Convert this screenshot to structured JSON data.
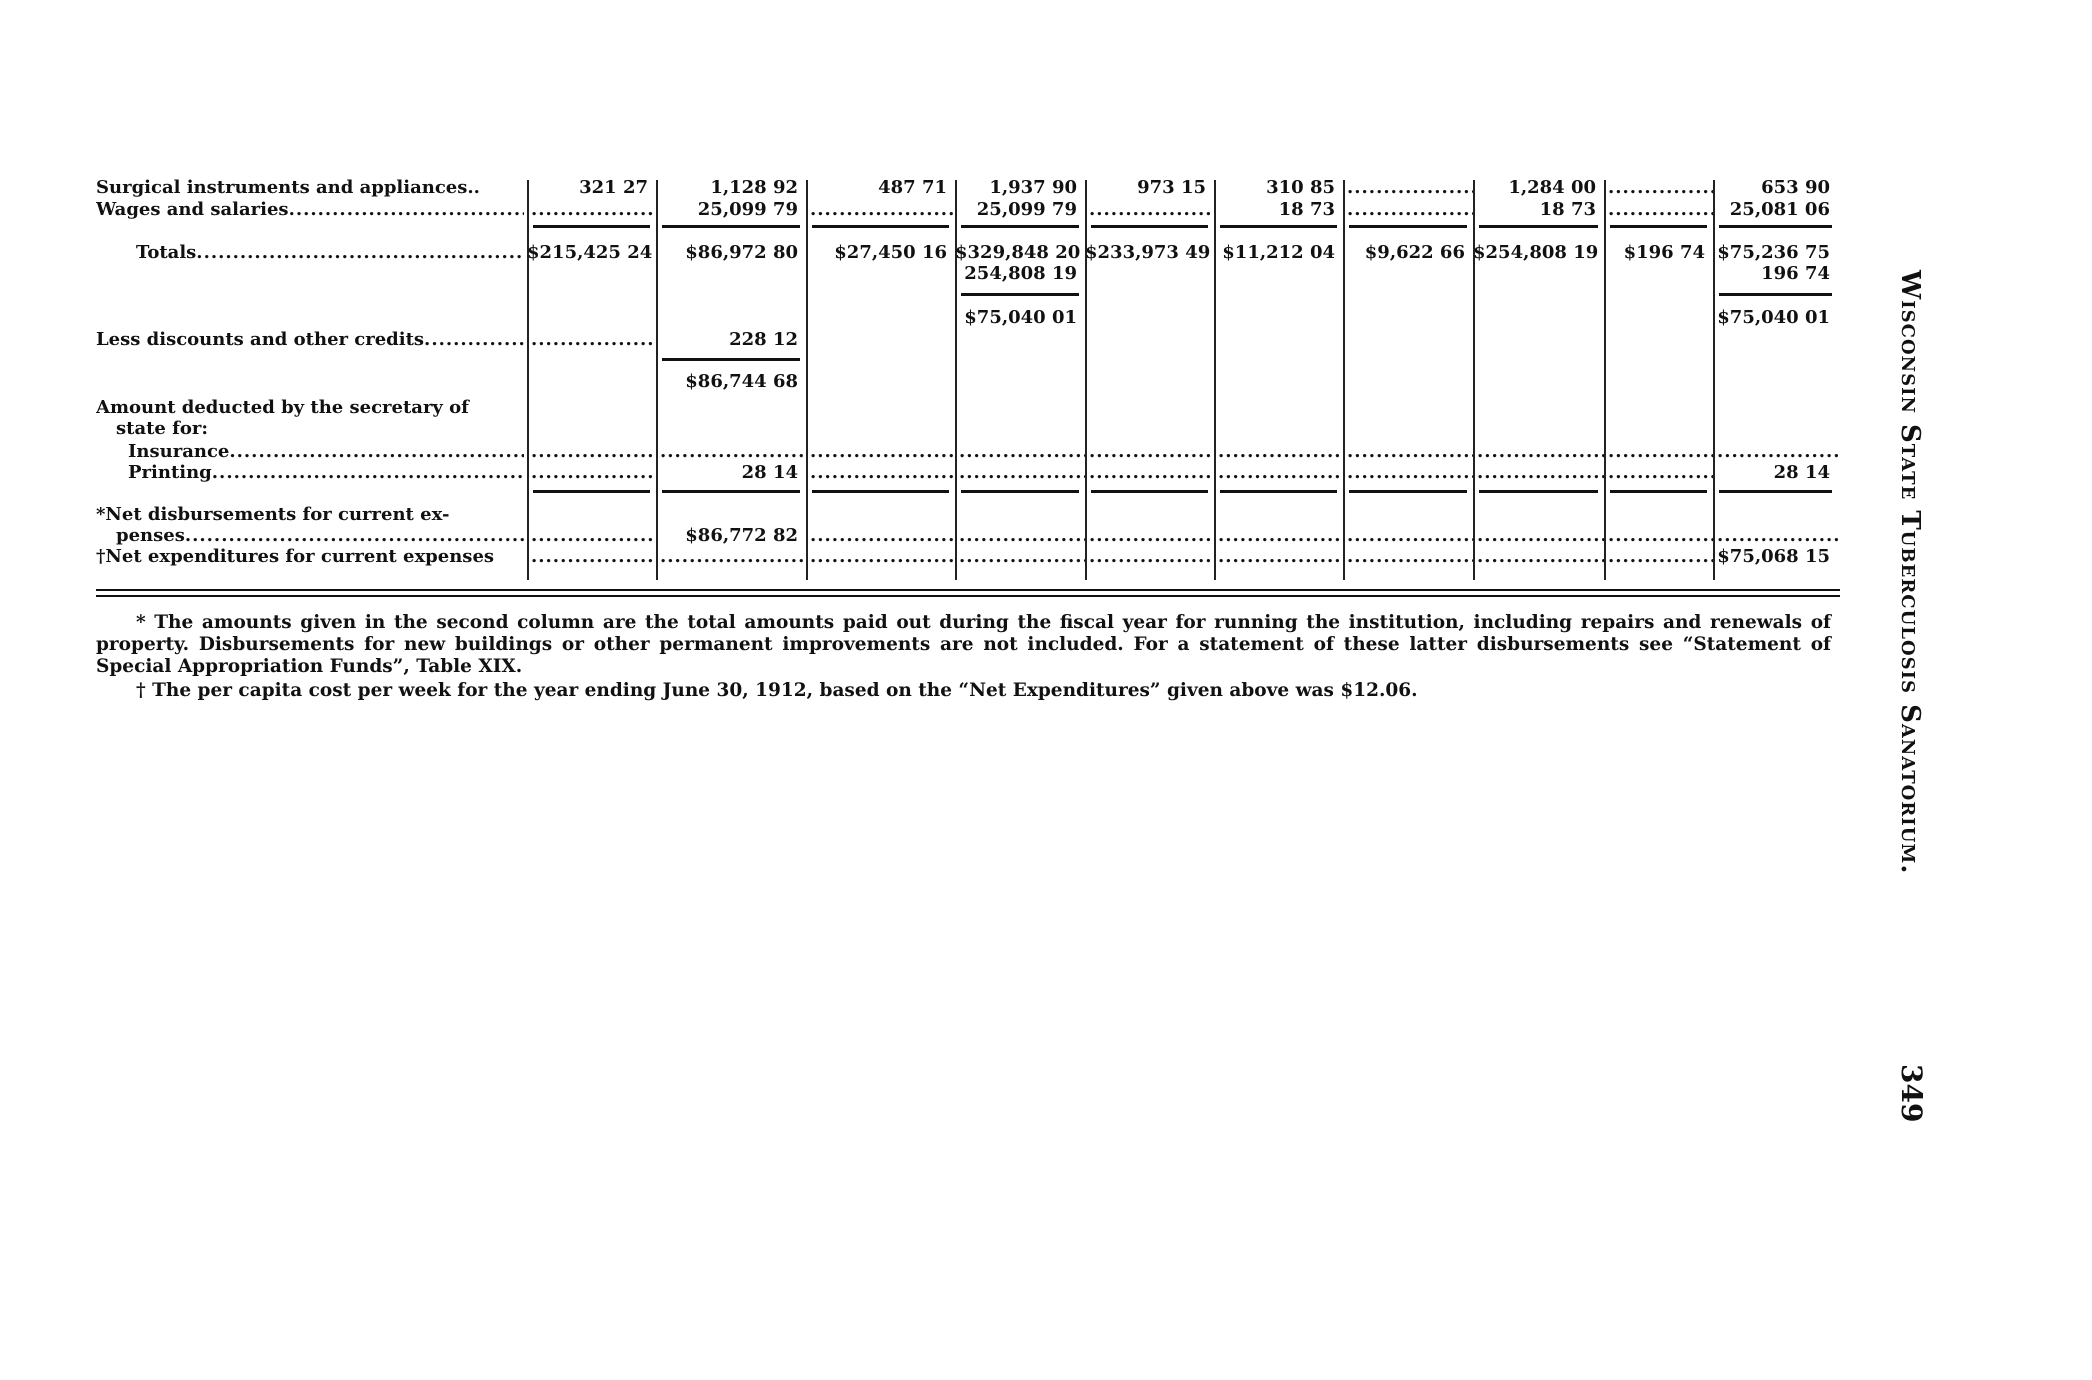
{
  "table": {
    "rows": [
      {
        "label": "Surgical instruments and appliances..",
        "cells": [
          "321 27",
          "1,128 92",
          "487 71",
          "1,937 90",
          "973 15",
          "310 85",
          ".",
          "1,284 00",
          ".",
          "653 90"
        ]
      },
      {
        "label": "Wages and salaries",
        "lead": true,
        "cells": [
          ".",
          "25,099 79",
          ".",
          "25,099 79",
          ".",
          "18 73",
          ".",
          "18 73",
          ".",
          "25,081 06"
        ]
      },
      {
        "rule": [
          0,
          1,
          2,
          3,
          4,
          5,
          6,
          7,
          8,
          9
        ]
      },
      {
        "label": "Totals",
        "lead": true,
        "indent": 2,
        "cells": [
          "$215,425 24",
          "$86,972 80",
          "$27,450 16",
          "$329,848 20",
          "$233,973 49",
          "$11,212 04",
          "$9,622 66",
          "$254,808 19",
          "$196 74",
          "$75,236 75"
        ]
      },
      {
        "label": "",
        "cells": [
          "",
          "",
          "",
          "254,808 19",
          "",
          "",
          "",
          "",
          "",
          "196 74"
        ]
      },
      {
        "rule": [
          3,
          9
        ]
      },
      {
        "label": "",
        "cells": [
          "",
          "",
          "",
          "$75,040 01",
          "",
          "",
          "",
          "",
          "",
          "$75,040 01"
        ]
      },
      {
        "label": "Less discounts and other credits",
        "lead": true,
        "cells": [
          ".",
          "228 12",
          "",
          "",
          "",
          "",
          "",
          "",
          "",
          ""
        ]
      },
      {
        "rule": [
          1
        ]
      },
      {
        "label": "",
        "cells": [
          "",
          "$86,744 68",
          "",
          "",
          "",
          "",
          "",
          "",
          "",
          ""
        ]
      },
      {
        "label": "Amount deducted by the secretary of",
        "cells": [
          "",
          "",
          "",
          "",
          "",
          "",
          "",
          "",
          "",
          ""
        ]
      },
      {
        "label": "state for:",
        "indent": 1,
        "cells": [
          "",
          "",
          "",
          "",
          "",
          "",
          "",
          "",
          "",
          ""
        ]
      },
      {
        "label": "Insurance",
        "lead": true,
        "indent": 1.6,
        "cells": [
          ".",
          ".",
          ".",
          ".",
          ".",
          ".",
          ".",
          ".",
          ".",
          "."
        ]
      },
      {
        "label": "Printing",
        "lead": true,
        "indent": 1.6,
        "cells": [
          ".",
          "28 14",
          ".",
          ".",
          ".",
          ".",
          ".",
          ".",
          ".",
          "28 14"
        ]
      },
      {
        "rule": [
          0,
          1,
          2,
          3,
          4,
          5,
          6,
          7,
          8,
          9
        ]
      },
      {
        "label": "*Net disbursements for current ex-",
        "cells": [
          "",
          "",
          "",
          "",
          "",
          "",
          "",
          "",
          "",
          ""
        ]
      },
      {
        "label": "penses",
        "lead": true,
        "indent": 1,
        "cells": [
          ".",
          "$86,772 82",
          ".",
          ".",
          ".",
          ".",
          ".",
          ".",
          ".",
          "."
        ]
      },
      {
        "label": "†Net expenditures for current expenses",
        "cells": [
          ".",
          ".",
          ".",
          ".",
          ".",
          ".",
          ".",
          ".",
          ".",
          "$75,068 15"
        ]
      }
    ]
  },
  "footnotes": [
    "* The amounts given in the second column are the total amounts paid out during the fiscal year for running the institution, including repairs and renewals of property. Disbursements for new buildings or other permanent improvements are not included. For a statement of these latter disbursements see “Statement of Special Appropriation Funds”, Table XIX.",
    "† The per capita cost per week for the year ending June 30, 1912, based on the “Net Expenditures” given above was $12.06."
  ],
  "running_head": "Wisconsin State Tuberculosis Sanatorium.",
  "page_number": "349"
}
